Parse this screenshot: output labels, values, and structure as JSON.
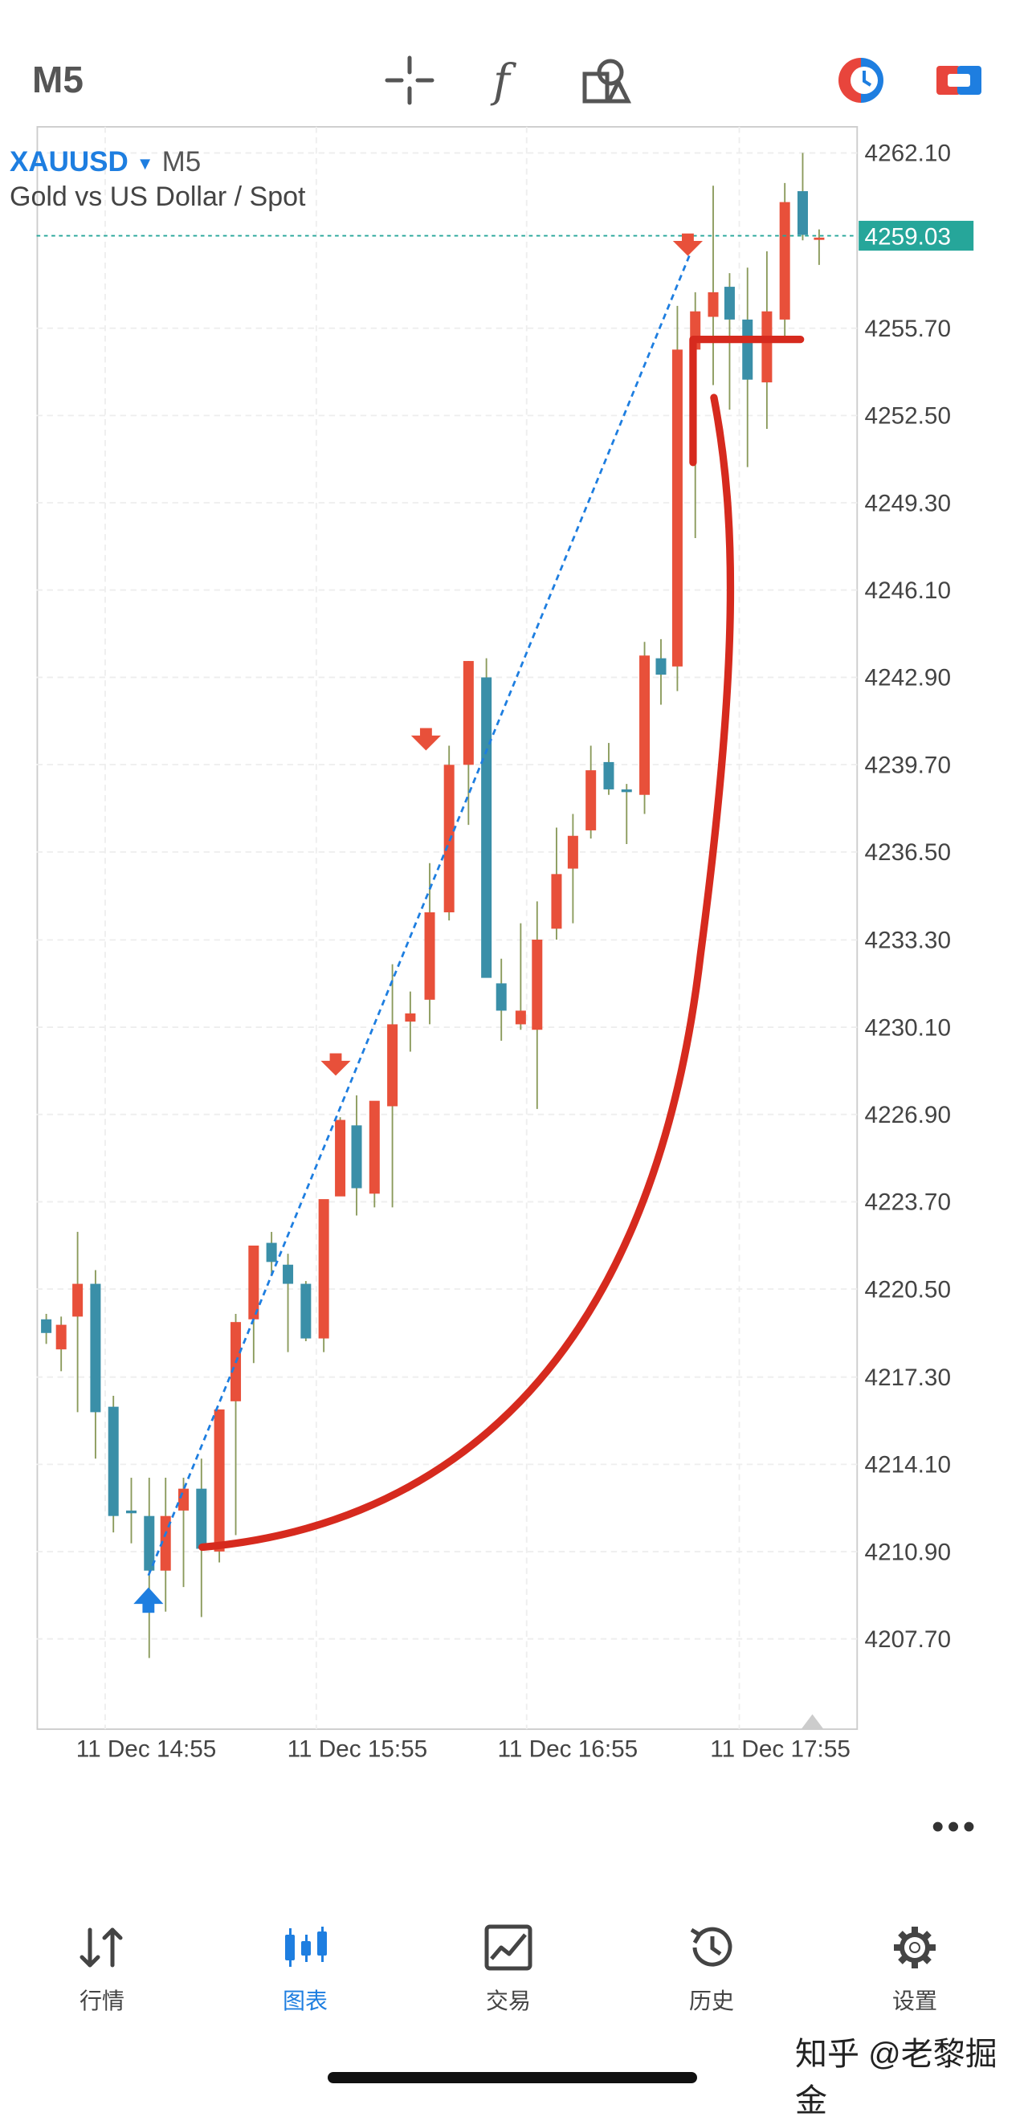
{
  "toolbar": {
    "timeframe": "M5",
    "crosshair_icon": "crosshair-icon",
    "indicators_icon": "function-icon",
    "objects_icon": "shapes-icon",
    "colors": {
      "account_red": "#e8453c",
      "account_blue": "#1e7ee0"
    }
  },
  "chart": {
    "symbol": "XAUUSD",
    "timeframe": "M5",
    "description": "Gold vs US Dollar / Spot",
    "current_price": "4259.03",
    "price_labels": [
      "4262.10",
      "4255.70",
      "4252.50",
      "4249.30",
      "4246.10",
      "4242.90",
      "4239.70",
      "4236.50",
      "4233.30",
      "4230.10",
      "4226.90",
      "4223.70",
      "4220.50",
      "4217.30",
      "4214.10",
      "4210.90",
      "4207.70"
    ],
    "time_labels": [
      "11 Dec 14:55",
      "11 Dec 15:55",
      "11 Dec 16:55",
      "11 Dec 17:55"
    ],
    "more_label": "•••",
    "colors": {
      "bull": "#e8503a",
      "bear": "#3a8fa8",
      "price_tag": "#26a69a",
      "annotation": "#d62a1e",
      "trendline": "#1e7ee0"
    }
  },
  "nav": [
    {
      "label": "行情",
      "icon": "quotes-arrows-icon"
    },
    {
      "label": "图表",
      "icon": "chart-candles-icon",
      "active": true
    },
    {
      "label": "交易",
      "icon": "trade-chart-icon"
    },
    {
      "label": "历史",
      "icon": "history-clock-icon"
    },
    {
      "label": "设置",
      "icon": "gear-icon"
    }
  ],
  "watermark": "知乎 @老黎掘金"
}
